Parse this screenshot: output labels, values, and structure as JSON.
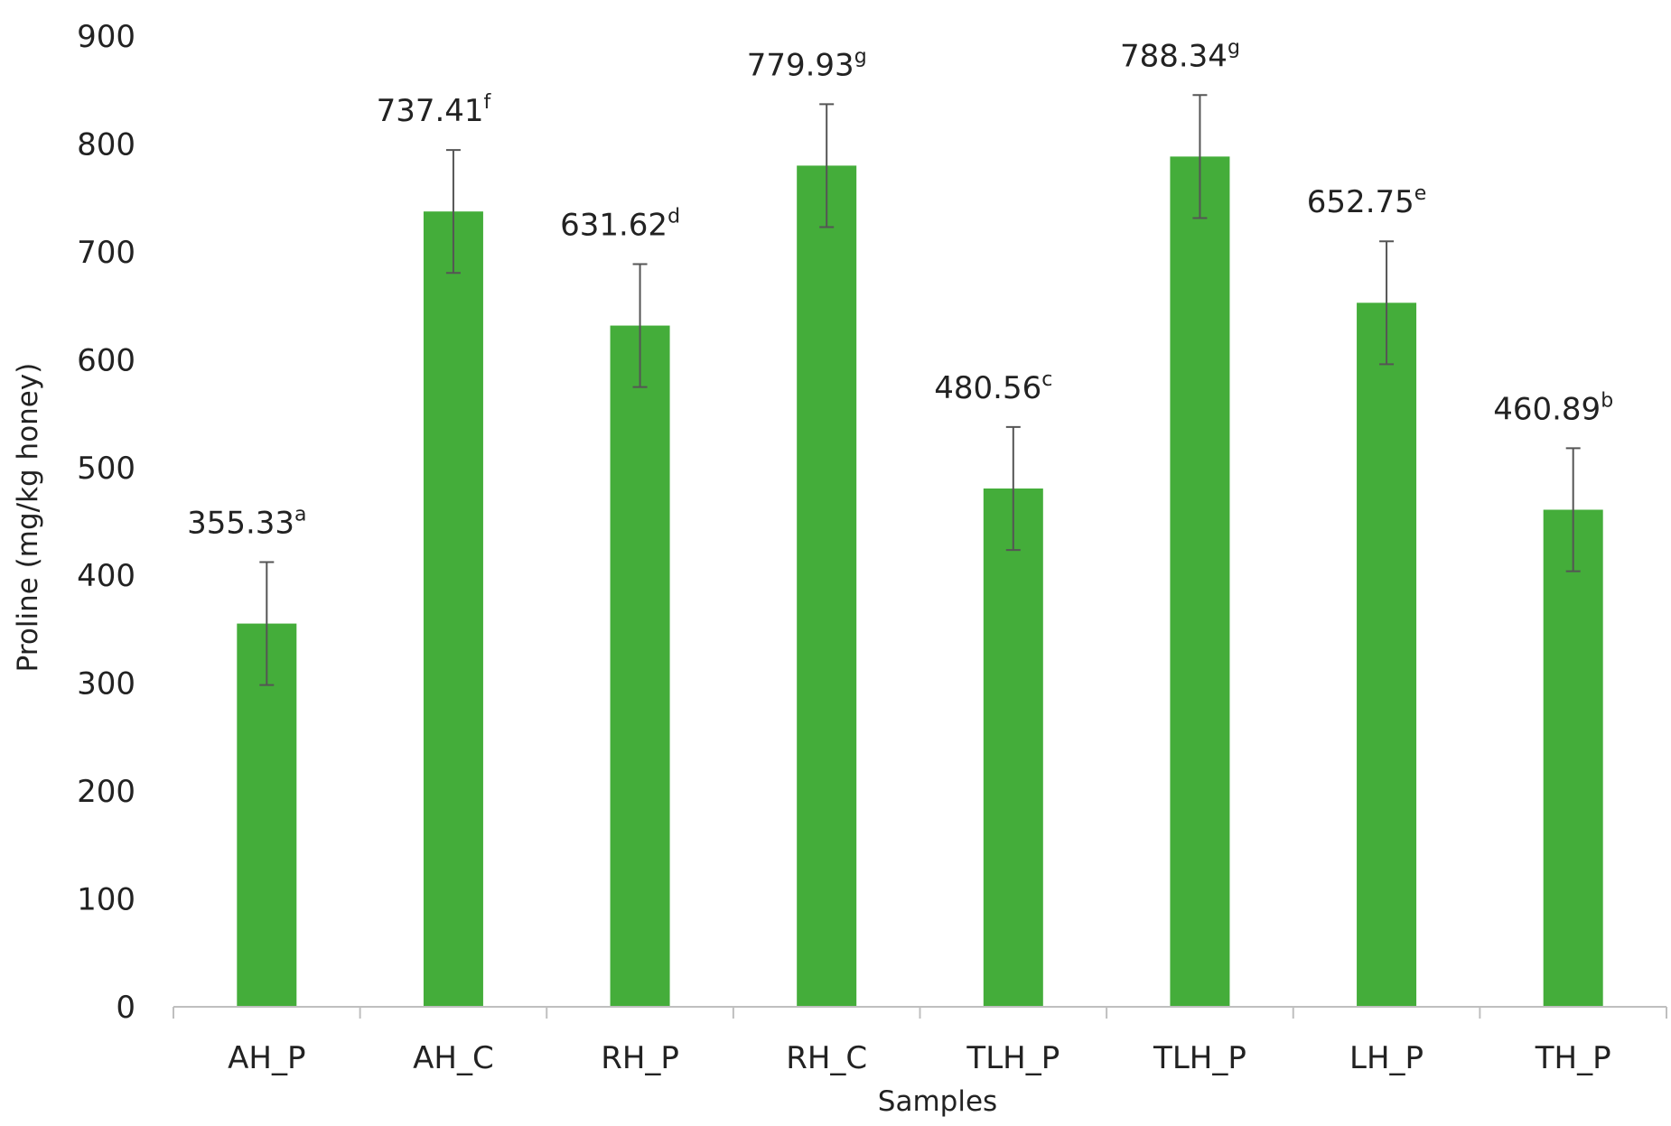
{
  "chart_data": {
    "type": "bar",
    "title": "",
    "xlabel": "Samples",
    "ylabel": "Proline (mg/kg honey)",
    "ylim": [
      0,
      900
    ],
    "yticks": [
      0,
      100,
      200,
      300,
      400,
      500,
      600,
      700,
      800,
      900
    ],
    "grid": false,
    "categories": [
      "AH_P",
      "AH_C",
      "RH_P",
      "RH_C",
      "TLH_P",
      "TLH_P",
      "LH_P",
      "TH_P"
    ],
    "values": [
      355.33,
      737.41,
      631.62,
      779.93,
      480.56,
      788.34,
      652.75,
      460.89
    ],
    "error": [
      57,
      57,
      57,
      57,
      57,
      57,
      57,
      57
    ],
    "data_labels": [
      "355.33",
      "737.41",
      "631.62",
      "779.93",
      "480.56",
      "788.34",
      "652.75",
      "460.89"
    ],
    "significance_letters": [
      "a",
      "f",
      "d",
      "g",
      "c",
      "g",
      "e",
      "b"
    ],
    "bar_color": "#44ad3a",
    "error_bar_color": "#555555",
    "axis_color": "#bfbfbf"
  }
}
